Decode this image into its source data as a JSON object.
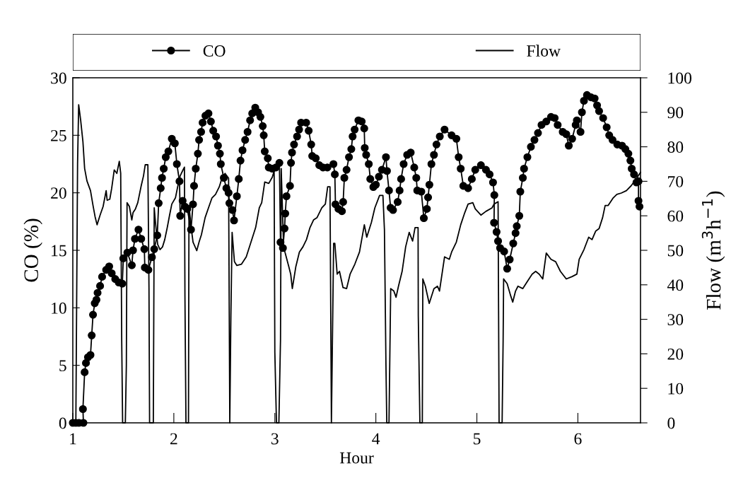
{
  "chart_data": {
    "type": "line",
    "xlabel": "Hour",
    "ylabel": "CO (%)",
    "y2label": "Flow (m$^{3}$h$^{−1}$)",
    "xlim": [
      1,
      6.62
    ],
    "xticks": [
      1,
      2,
      3,
      4,
      5,
      6
    ],
    "ylim": [
      0,
      30
    ],
    "yticks": [
      0,
      5,
      10,
      15,
      20,
      25,
      30
    ],
    "y2lim": [
      0,
      100
    ],
    "y2ticks": [
      0,
      10,
      20,
      30,
      40,
      50,
      60,
      70,
      80,
      90,
      100
    ],
    "legend": "top",
    "grid": false,
    "series": [
      {
        "name": "CO",
        "color": "#000000",
        "marker": "circle",
        "line_style": "solid",
        "x": [
          1.0,
          1.03,
          1.06,
          1.105,
          1.1,
          1.117,
          1.13,
          1.15,
          1.175,
          1.187,
          1.2,
          1.217,
          1.234,
          1.245,
          1.27,
          1.29,
          1.33,
          1.36,
          1.385,
          1.42,
          1.455,
          1.49,
          1.5,
          1.54,
          1.584,
          1.596,
          1.615,
          1.65,
          1.677,
          1.708,
          1.713,
          1.748,
          1.783,
          1.806,
          1.836,
          1.85,
          1.87,
          1.883,
          1.9,
          1.92,
          1.946,
          1.98,
          2.01,
          2.03,
          2.056,
          2.063,
          2.087,
          2.11,
          2.133,
          2.17,
          2.19,
          2.2,
          2.217,
          2.238,
          2.25,
          2.27,
          2.285,
          2.313,
          2.343,
          2.367,
          2.39,
          2.418,
          2.437,
          2.456,
          2.465,
          2.495,
          2.52,
          2.542,
          2.55,
          2.58,
          2.596,
          2.624,
          2.643,
          2.66,
          2.68,
          2.706,
          2.73,
          2.755,
          2.776,
          2.806,
          2.834,
          2.857,
          2.88,
          2.89,
          2.9,
          2.93,
          2.94,
          2.975,
          3.01,
          3.045,
          3.056,
          3.08,
          3.096,
          3.103,
          3.115,
          3.15,
          3.16,
          3.17,
          3.19,
          3.22,
          3.24,
          3.26,
          3.31,
          3.335,
          3.36,
          3.37,
          3.405,
          3.44,
          3.477,
          3.52,
          3.58,
          3.594,
          3.6,
          3.63,
          3.664,
          3.676,
          3.688,
          3.71,
          3.734,
          3.757,
          3.77,
          3.79,
          3.827,
          3.86,
          3.885,
          3.89,
          3.904,
          3.93,
          3.945,
          3.975,
          4.0,
          4.03,
          4.06,
          4.1,
          4.11,
          4.13,
          4.146,
          4.17,
          4.216,
          4.235,
          4.25,
          4.275,
          4.31,
          4.345,
          4.38,
          4.4,
          4.41,
          4.45,
          4.475,
          4.505,
          4.517,
          4.53,
          4.55,
          4.575,
          4.6,
          4.633,
          4.68,
          4.75,
          4.797,
          4.82,
          4.84,
          4.866,
          4.913,
          4.95,
          4.984,
          5.04,
          5.09,
          5.126,
          5.16,
          5.173,
          5.17,
          5.195,
          5.21,
          5.23,
          5.27,
          5.3,
          5.325,
          5.36,
          5.383,
          5.395,
          5.42,
          5.43,
          5.455,
          5.467,
          5.5,
          5.535,
          5.57,
          5.605,
          5.64,
          5.687,
          5.734,
          5.77,
          5.8,
          5.85,
          5.885,
          5.91,
          5.943,
          5.978,
          5.99,
          6.026,
          6.04,
          6.06,
          6.09,
          6.13,
          6.166,
          6.19,
          6.21,
          6.25,
          6.285,
          6.31,
          6.343,
          6.39,
          6.437,
          6.47,
          6.5,
          6.52,
          6.533,
          6.556,
          6.58,
          6.6,
          6.6,
          6.61
        ],
        "values": [
          0,
          0,
          0,
          0,
          1.2,
          4.4,
          5.2,
          5.7,
          5.9,
          7.6,
          9.4,
          10.4,
          10.7,
          11.3,
          11.9,
          12.7,
          13.3,
          13.6,
          13.0,
          12.5,
          12.2,
          12.1,
          14.3,
          14.8,
          13.7,
          15.0,
          16.0,
          16.8,
          16.0,
          15.1,
          13.5,
          13.3,
          14.4,
          15.1,
          16.3,
          19.1,
          20.4,
          21.3,
          22.1,
          23.1,
          23.6,
          24.7,
          24.3,
          22.5,
          21.0,
          18.0,
          19.3,
          18.8,
          18.6,
          16.8,
          19.0,
          20.6,
          22.1,
          23.4,
          24.6,
          25.3,
          26.1,
          26.7,
          26.9,
          26.2,
          25.4,
          24.9,
          24.1,
          23.4,
          22.5,
          21.3,
          20.4,
          20.0,
          19.1,
          18.5,
          17.6,
          19.7,
          21.2,
          22.8,
          23.7,
          24.6,
          25.3,
          26.3,
          26.9,
          27.4,
          27.0,
          26.6,
          25.8,
          25.0,
          23.6,
          23.0,
          22.2,
          22.1,
          22.2,
          22.6,
          15.7,
          15.2,
          16.9,
          18.2,
          19.7,
          20.6,
          22.6,
          23.5,
          24.2,
          24.9,
          25.5,
          26.1,
          26.1,
          25.4,
          24.2,
          23.2,
          23.0,
          22.4,
          22.2,
          22.2,
          22.5,
          21.6,
          19.0,
          18.6,
          18.4,
          19.2,
          21.3,
          22.0,
          23.1,
          23.8,
          24.9,
          25.5,
          26.3,
          26.2,
          25.6,
          23.9,
          23.3,
          22.5,
          21.2,
          20.5,
          20.7,
          21.4,
          22.0,
          23.1,
          21.9,
          20.2,
          18.7,
          18.5,
          19.2,
          20.2,
          21.2,
          22.5,
          23.3,
          23.5,
          22.2,
          21.3,
          20.2,
          20.1,
          17.8,
          18.6,
          19.6,
          20.7,
          22.5,
          23.3,
          24.2,
          24.9,
          25.5,
          25.0,
          24.7,
          23.1,
          22.1,
          20.6,
          20.4,
          21.2,
          22.0,
          22.4,
          22.0,
          21.6,
          20.9,
          19.8,
          17.4,
          16.6,
          15.8,
          15.2,
          14.9,
          13.4,
          14.2,
          15.6,
          16.5,
          17.1,
          18.0,
          20.1,
          21.3,
          22.1,
          23.1,
          24.0,
          24.6,
          25.2,
          25.9,
          26.2,
          26.6,
          26.5,
          25.9,
          25.3,
          25.1,
          24.1,
          24.7,
          25.9,
          26.3,
          25.3,
          27.0,
          28.0,
          28.5,
          28.3,
          28.2,
          27.6,
          27.1,
          26.5,
          25.7,
          25.0,
          24.6,
          24.2,
          24.1,
          23.8,
          23.4,
          22.8,
          22.1,
          21.6,
          20.9,
          21.0,
          19.3,
          18.8
        ]
      },
      {
        "name": "Flow",
        "color": "#000000",
        "marker": "none",
        "line_style": "solid",
        "axis": "y2",
        "x": [
          1.0,
          1.03,
          1.047,
          1.058,
          1.077,
          1.1,
          1.117,
          1.14,
          1.175,
          1.2,
          1.22,
          1.24,
          1.27,
          1.3,
          1.33,
          1.34,
          1.366,
          1.385,
          1.41,
          1.436,
          1.46,
          1.474,
          1.484,
          1.493,
          1.52,
          1.53,
          1.537,
          1.56,
          1.584,
          1.596,
          1.62,
          1.643,
          1.677,
          1.7,
          1.717,
          1.743,
          1.754,
          1.76,
          1.797,
          1.806,
          1.818,
          1.84,
          1.864,
          1.888,
          1.91,
          1.935,
          1.958,
          1.98,
          2.016,
          2.04,
          2.063,
          2.086,
          2.105,
          2.11,
          2.12,
          2.145,
          2.15,
          2.17,
          2.19,
          2.227,
          2.25,
          2.273,
          2.31,
          2.343,
          2.378,
          2.413,
          2.45,
          2.472,
          2.507,
          2.542,
          2.554,
          2.565,
          2.577,
          2.6,
          2.624,
          2.67,
          2.717,
          2.764,
          2.81,
          2.846,
          2.87,
          2.9,
          2.94,
          2.975,
          2.993,
          3.0,
          3.016,
          3.04,
          3.056,
          3.063,
          3.086,
          3.1,
          3.138,
          3.157,
          3.173,
          3.208,
          3.243,
          3.278,
          3.313,
          3.348,
          3.383,
          3.418,
          3.465,
          3.5,
          3.523,
          3.546,
          3.56,
          3.582,
          3.594,
          3.617,
          3.64,
          3.675,
          3.71,
          3.745,
          3.792,
          3.838,
          3.886,
          3.91,
          3.956,
          3.99,
          4.037,
          4.07,
          4.085,
          4.1,
          4.108,
          4.13,
          4.147,
          4.178,
          4.2,
          4.224,
          4.26,
          4.295,
          4.33,
          4.364,
          4.388,
          4.418,
          4.42,
          4.436,
          4.46,
          4.465,
          4.49,
          4.528,
          4.575,
          4.61,
          4.63,
          4.68,
          4.727,
          4.75,
          4.797,
          4.84,
          4.88,
          4.913,
          4.96,
          4.984,
          5.04,
          5.09,
          5.15,
          5.17,
          5.21,
          5.215,
          5.22,
          5.25,
          5.26,
          5.265,
          5.3,
          5.336,
          5.355,
          5.383,
          5.407,
          5.454,
          5.5,
          5.547,
          5.582,
          5.617,
          5.652,
          5.687,
          5.734,
          5.78,
          5.827,
          5.885,
          5.943,
          5.99,
          6.013,
          6.06,
          6.107,
          6.14,
          6.177,
          6.21,
          6.245,
          6.27,
          6.3,
          6.35,
          6.386,
          6.43,
          6.48,
          6.527,
          6.573,
          6.62
        ],
        "values": [
          0,
          0,
          75.1,
          92.2,
          87.9,
          81.5,
          73.7,
          70.1,
          67.3,
          63.0,
          59.8,
          57.4,
          60.2,
          62.7,
          67.3,
          64.5,
          64.8,
          68.0,
          73.3,
          72.3,
          75.8,
          72.3,
          24.0,
          0,
          0,
          16.8,
          63.8,
          62.7,
          58.8,
          60.9,
          62.0,
          63.8,
          68.7,
          71.6,
          74.8,
          74.8,
          39.2,
          0,
          0,
          62.3,
          58.1,
          51.7,
          50.2,
          51.0,
          53.1,
          56.6,
          60.2,
          63.4,
          65.2,
          68.7,
          71.6,
          73.0,
          74.1,
          36.7,
          0,
          0,
          63.0,
          57.0,
          52.4,
          49.9,
          52.4,
          54.5,
          59.5,
          62.3,
          65.2,
          66.2,
          68.4,
          70.5,
          72.3,
          70.9,
          0,
          31.1,
          55.2,
          46.7,
          45.6,
          46.0,
          48.1,
          52.4,
          56.6,
          62.3,
          63.8,
          69.8,
          69.4,
          71.2,
          73.0,
          20.4,
          0,
          0,
          24.0,
          73.7,
          51.7,
          49.5,
          45.3,
          43.1,
          38.9,
          45.3,
          49.5,
          51.0,
          53.1,
          56.6,
          58.8,
          59.5,
          62.3,
          63.4,
          68.4,
          68.4,
          0,
          52.0,
          52.0,
          43.1,
          43.9,
          39.2,
          38.9,
          43.1,
          46.0,
          49.5,
          57.4,
          53.8,
          58.1,
          62.3,
          65.9,
          65.9,
          55.9,
          16.8,
          0,
          0,
          38.9,
          38.2,
          36.4,
          39.6,
          43.9,
          51.0,
          55.2,
          52.7,
          56.6,
          56.6,
          31.1,
          0,
          0,
          41.7,
          39.6,
          34.6,
          38.9,
          39.6,
          38.2,
          48.1,
          47.4,
          49.5,
          52.4,
          57.4,
          60.9,
          63.4,
          63.8,
          62.0,
          60.2,
          61.3,
          62.3,
          63.4,
          64.1,
          32.5,
          0,
          0,
          24.0,
          41.7,
          40.3,
          36.7,
          35.0,
          38.2,
          39.6,
          38.9,
          41.0,
          43.1,
          43.9,
          43.1,
          41.7,
          49.2,
          47.4,
          46.7,
          43.9,
          41.7,
          42.4,
          43.1,
          47.4,
          50.2,
          53.8,
          53.1,
          55.6,
          56.3,
          59.5,
          63.0,
          63.0,
          65.2,
          66.2,
          66.6,
          67.3,
          68.7,
          70.5,
          72.6
        ]
      }
    ]
  }
}
